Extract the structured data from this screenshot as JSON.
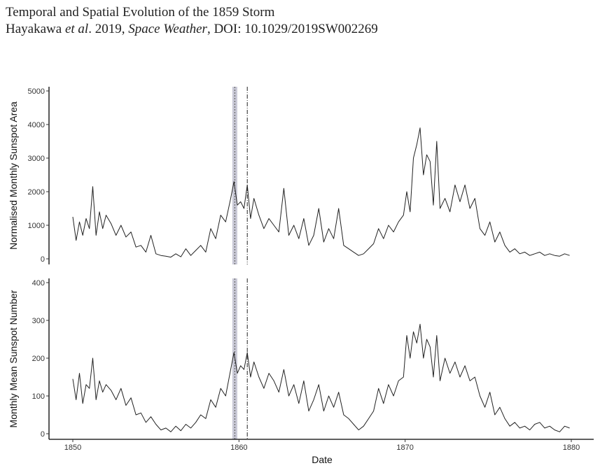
{
  "header": {
    "line1": "Temporal and Spatial Evolution of the 1859 Storm",
    "line2_a": "Hayakawa ",
    "line2_b": "et al",
    "line2_c": ". 2019, ",
    "line2_d": "Space Weather",
    "line2_e": ", DOI: 10.1029/2019SW002269"
  },
  "chart_data": [
    {
      "type": "line",
      "ylabel": "Normalised Monthly Sunspot Area",
      "xlabel": "",
      "xlim": [
        1850,
        1880
      ],
      "ylim": [
        0,
        5000
      ],
      "yticks": [
        0,
        1000,
        2000,
        3000,
        4000,
        5000
      ],
      "xticks": [
        1850,
        1860,
        1870,
        1880
      ],
      "shaded_band": [
        1859.6,
        1859.9
      ],
      "vlines": [
        1859.75,
        1860.5
      ],
      "series": [
        {
          "x": [
            1850.0,
            1850.2,
            1850.4,
            1850.6,
            1850.8,
            1851.0,
            1851.2,
            1851.4,
            1851.6,
            1851.8,
            1852.0,
            1852.3,
            1852.6,
            1852.9,
            1853.2,
            1853.5,
            1853.8,
            1854.1,
            1854.4,
            1854.7,
            1855.0,
            1855.3,
            1855.6,
            1855.9,
            1856.2,
            1856.5,
            1856.8,
            1857.1,
            1857.4,
            1857.7,
            1858.0,
            1858.3,
            1858.6,
            1858.9,
            1859.2,
            1859.5,
            1859.7,
            1859.9,
            1860.1,
            1860.3,
            1860.5,
            1860.7,
            1860.9,
            1861.2,
            1861.5,
            1861.8,
            1862.1,
            1862.4,
            1862.7,
            1863.0,
            1863.3,
            1863.6,
            1863.9,
            1864.2,
            1864.5,
            1864.8,
            1865.1,
            1865.4,
            1865.7,
            1866.0,
            1866.3,
            1866.6,
            1866.9,
            1867.2,
            1867.5,
            1867.8,
            1868.1,
            1868.4,
            1868.7,
            1869.0,
            1869.3,
            1869.6,
            1869.9,
            1870.1,
            1870.3,
            1870.5,
            1870.7,
            1870.9,
            1871.1,
            1871.3,
            1871.5,
            1871.7,
            1871.9,
            1872.1,
            1872.4,
            1872.7,
            1873.0,
            1873.3,
            1873.6,
            1873.9,
            1874.2,
            1874.5,
            1874.8,
            1875.1,
            1875.4,
            1875.7,
            1876.0,
            1876.3,
            1876.6,
            1876.9,
            1877.2,
            1877.5,
            1877.8,
            1878.1,
            1878.4,
            1878.7,
            1879.0,
            1879.3,
            1879.6,
            1879.9
          ],
          "y": [
            1250,
            550,
            1100,
            700,
            1200,
            900,
            2150,
            700,
            1400,
            900,
            1300,
            1050,
            700,
            1000,
            650,
            800,
            350,
            400,
            200,
            700,
            150,
            100,
            80,
            50,
            150,
            60,
            300,
            100,
            250,
            400,
            200,
            900,
            600,
            1300,
            1100,
            1800,
            2300,
            1600,
            1700,
            1500,
            2200,
            1200,
            1800,
            1300,
            900,
            1200,
            1000,
            800,
            2100,
            700,
            1000,
            600,
            1200,
            400,
            700,
            1500,
            500,
            900,
            600,
            1500,
            400,
            300,
            200,
            100,
            150,
            300,
            450,
            900,
            600,
            1000,
            800,
            1100,
            1300,
            2000,
            1400,
            3000,
            3400,
            3900,
            2500,
            3100,
            2900,
            1600,
            3500,
            1500,
            1800,
            1400,
            2200,
            1700,
            2200,
            1500,
            1800,
            900,
            700,
            1100,
            500,
            800,
            400,
            200,
            300,
            150,
            200,
            100,
            150,
            200,
            100,
            150,
            100,
            80,
            150,
            100
          ]
        }
      ]
    },
    {
      "type": "line",
      "ylabel": "Monthly Mean Sunspot Number",
      "xlabel": "Date",
      "xlim": [
        1850,
        1880
      ],
      "ylim": [
        0,
        400
      ],
      "yticks": [
        0,
        100,
        200,
        300,
        400
      ],
      "xticks": [
        1850,
        1860,
        1870,
        1880
      ],
      "shaded_band": [
        1859.6,
        1859.9
      ],
      "vlines": [
        1859.75,
        1860.5
      ],
      "series": [
        {
          "x": [
            1850.0,
            1850.2,
            1850.4,
            1850.6,
            1850.8,
            1851.0,
            1851.2,
            1851.4,
            1851.6,
            1851.8,
            1852.0,
            1852.3,
            1852.6,
            1852.9,
            1853.2,
            1853.5,
            1853.8,
            1854.1,
            1854.4,
            1854.7,
            1855.0,
            1855.3,
            1855.6,
            1855.9,
            1856.2,
            1856.5,
            1856.8,
            1857.1,
            1857.4,
            1857.7,
            1858.0,
            1858.3,
            1858.6,
            1858.9,
            1859.2,
            1859.5,
            1859.7,
            1859.9,
            1860.1,
            1860.3,
            1860.5,
            1860.7,
            1860.9,
            1861.2,
            1861.5,
            1861.8,
            1862.1,
            1862.4,
            1862.7,
            1863.0,
            1863.3,
            1863.6,
            1863.9,
            1864.2,
            1864.5,
            1864.8,
            1865.1,
            1865.4,
            1865.7,
            1866.0,
            1866.3,
            1866.6,
            1866.9,
            1867.2,
            1867.5,
            1867.8,
            1868.1,
            1868.4,
            1868.7,
            1869.0,
            1869.3,
            1869.6,
            1869.9,
            1870.1,
            1870.3,
            1870.5,
            1870.7,
            1870.9,
            1871.1,
            1871.3,
            1871.5,
            1871.7,
            1871.9,
            1872.1,
            1872.4,
            1872.7,
            1873.0,
            1873.3,
            1873.6,
            1873.9,
            1874.2,
            1874.5,
            1874.8,
            1875.1,
            1875.4,
            1875.7,
            1876.0,
            1876.3,
            1876.6,
            1876.9,
            1877.2,
            1877.5,
            1877.8,
            1878.1,
            1878.4,
            1878.7,
            1879.0,
            1879.3,
            1879.6,
            1879.9
          ],
          "y": [
            145,
            90,
            160,
            80,
            130,
            120,
            200,
            90,
            140,
            110,
            130,
            115,
            90,
            120,
            75,
            95,
            50,
            55,
            30,
            45,
            25,
            10,
            15,
            5,
            20,
            8,
            25,
            15,
            30,
            50,
            40,
            90,
            70,
            120,
            100,
            170,
            215,
            160,
            180,
            170,
            215,
            150,
            190,
            150,
            120,
            160,
            140,
            110,
            170,
            100,
            130,
            80,
            140,
            60,
            90,
            130,
            60,
            100,
            70,
            110,
            50,
            40,
            25,
            10,
            20,
            40,
            60,
            120,
            80,
            130,
            100,
            140,
            150,
            260,
            200,
            270,
            240,
            290,
            200,
            250,
            230,
            150,
            260,
            140,
            200,
            160,
            190,
            150,
            180,
            140,
            150,
            100,
            70,
            110,
            50,
            70,
            40,
            20,
            30,
            15,
            20,
            10,
            25,
            30,
            15,
            20,
            10,
            5,
            20,
            15
          ]
        }
      ]
    }
  ]
}
